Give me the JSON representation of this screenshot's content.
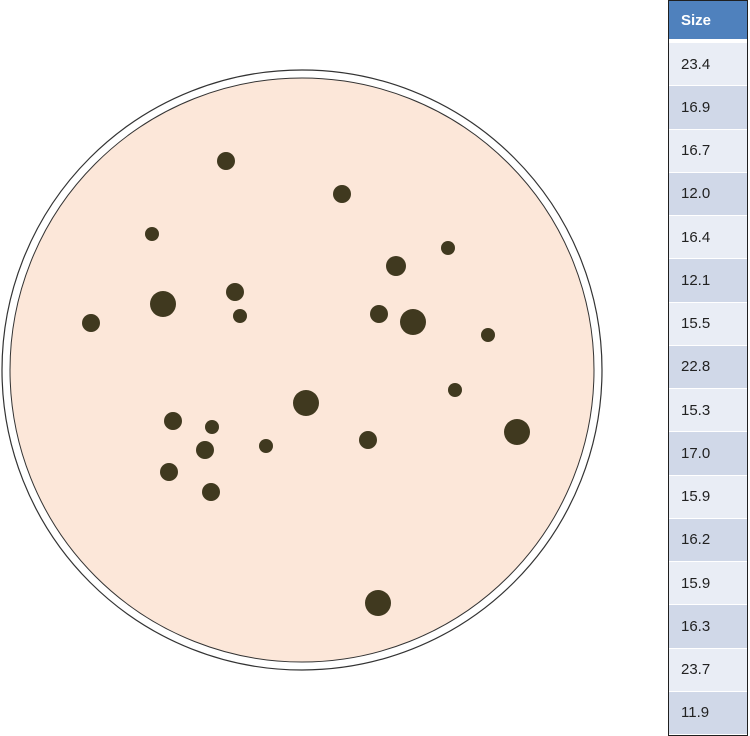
{
  "table": {
    "header": "Size",
    "values": [
      "23.4",
      "16.9",
      "16.7",
      "12.0",
      "16.4",
      "12.1",
      "15.5",
      "22.8",
      "15.3",
      "17.0",
      "15.9",
      "16.2",
      "15.9",
      "16.3",
      "23.7",
      "11.9"
    ]
  },
  "colors": {
    "dish_fill": "#fce7d9",
    "colony_fill": "#40391f",
    "header_bg": "#4f81bd",
    "row_light": "#e9edf5",
    "row_dark": "#d0d8e8"
  },
  "colonies": [
    {
      "size": 18
    },
    {
      "size": 18
    },
    {
      "size": 14
    },
    {
      "size": 26
    },
    {
      "size": 18
    },
    {
      "size": 14
    },
    {
      "size": 14
    },
    {
      "size": 20
    },
    {
      "size": 18
    },
    {
      "size": 18
    },
    {
      "size": 14
    },
    {
      "size": 26
    },
    {
      "size": 14
    },
    {
      "size": 18
    },
    {
      "size": 18
    },
    {
      "size": 18
    },
    {
      "size": 14
    },
    {
      "size": 26
    },
    {
      "size": 14
    },
    {
      "size": 18
    },
    {
      "size": 18
    },
    {
      "size": 26
    },
    {
      "size": 26
    }
  ]
}
